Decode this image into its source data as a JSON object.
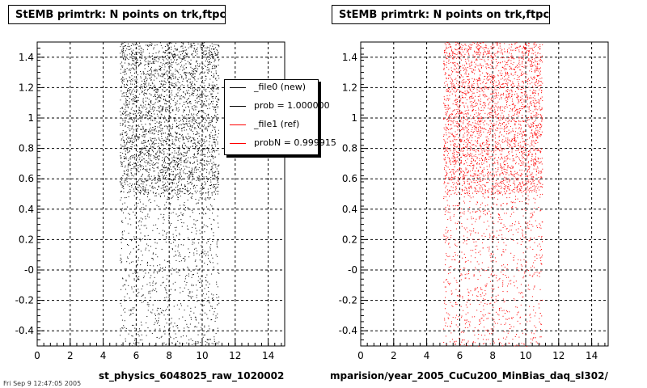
{
  "chart_data": [
    {
      "type": "scatter",
      "title": "StEMB primtrk: N points on trk,ftpc",
      "xlabel": "st_physics_6048025_raw_1020002",
      "xlim": [
        0,
        15
      ],
      "ylim": [
        -0.5,
        1.5
      ],
      "xticks": [
        "0",
        "2",
        "4",
        "6",
        "8",
        "10",
        "12",
        "14"
      ],
      "yticks": [
        "-0.4",
        "-0.2",
        "-0",
        "0.2",
        "0.4",
        "0.6",
        "0.8",
        "1",
        "1.2",
        "1.4"
      ],
      "grid": true,
      "color": "#000000",
      "x_range_of_points": [
        5,
        11
      ],
      "dense_above_y": 0.5,
      "legend": {
        "placement": "top-right",
        "entries": [
          {
            "label": "_file0 (new)",
            "color": "#000000"
          },
          {
            "label": "prob = 1.000000",
            "color": "#000000"
          },
          {
            "label": "_file1 (ref)",
            "color": "#ff0000"
          },
          {
            "label": "probN = 0.999915",
            "color": "#ff0000"
          }
        ]
      }
    },
    {
      "type": "scatter",
      "title": "StEMB primtrk: N points on trk,ftpc",
      "xlabel": "mparision/year_2005_CuCu200_MinBias_daq_sl302/",
      "xlim": [
        0,
        15
      ],
      "ylim": [
        -0.5,
        1.5
      ],
      "xticks": [
        "0",
        "2",
        "4",
        "6",
        "8",
        "10",
        "12",
        "14"
      ],
      "yticks": [
        "-0.4",
        "-0.2",
        "-0",
        "0.2",
        "0.4",
        "0.6",
        "0.8",
        "1",
        "1.2",
        "1.4"
      ],
      "grid": true,
      "color": "#ff0000",
      "x_range_of_points": [
        5,
        11
      ],
      "dense_above_y": 0.5
    }
  ],
  "footer_caption": "Fri Sep 9 12:47:05 2005"
}
